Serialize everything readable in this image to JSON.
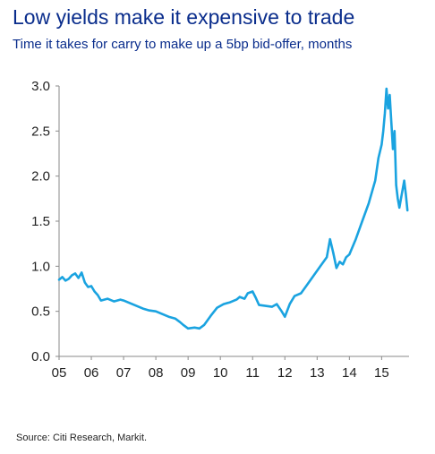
{
  "header": {
    "title": "Low yields make it expensive to trade",
    "subtitle": "Time it takes for carry to make up a 5bp bid-offer, months"
  },
  "footer": {
    "source": "Source: Citi Research, Markit."
  },
  "colors": {
    "line": "#1aa3e0",
    "title": "#0a2d8c",
    "axis": "#8a8a8a"
  },
  "chart_data": {
    "type": "line",
    "title": "Low yields make it expensive to trade",
    "subtitle": "Time it takes for carry to make up a 5bp bid-offer, months",
    "xlabel": "",
    "ylabel": "",
    "xlim": [
      2005.0,
      2015.85
    ],
    "ylim": [
      0,
      3.0
    ],
    "x_ticks": [
      2005,
      2006,
      2007,
      2008,
      2009,
      2010,
      2011,
      2012,
      2013,
      2014,
      2015
    ],
    "x_tick_labels": [
      "05",
      "06",
      "07",
      "08",
      "09",
      "10",
      "11",
      "12",
      "13",
      "14",
      "15"
    ],
    "y_ticks": [
      0,
      0.5,
      1.0,
      1.5,
      2.0,
      2.5,
      3.0
    ],
    "y_tick_labels": [
      "0.0",
      "0.5",
      "1.0",
      "1.5",
      "2.0",
      "2.5",
      "3.0"
    ],
    "grid": false,
    "legend": "none",
    "series": [
      {
        "x": [
          2005.0,
          2005.1,
          2005.2,
          2005.3,
          2005.4,
          2005.5,
          2005.6,
          2005.7,
          2005.8,
          2005.9,
          2006.0,
          2006.1,
          2006.2,
          2006.3,
          2006.5,
          2006.7,
          2006.9,
          2007.0,
          2007.2,
          2007.4,
          2007.6,
          2007.8,
          2008.0,
          2008.2,
          2008.4,
          2008.6,
          2008.75,
          2008.85,
          2009.0,
          2009.2,
          2009.35,
          2009.5,
          2009.7,
          2009.9,
          2010.1,
          2010.3,
          2010.5,
          2010.6,
          2010.75,
          2010.85,
          2011.0,
          2011.1,
          2011.2,
          2011.4,
          2011.6,
          2011.75,
          2011.9,
          2012.0,
          2012.15,
          2012.3,
          2012.5,
          2012.7,
          2012.9,
          2013.1,
          2013.3,
          2013.4,
          2013.5,
          2013.6,
          2013.7,
          2013.8,
          2013.9,
          2014.0,
          2014.2,
          2014.4,
          2014.6,
          2014.8,
          2014.9,
          2015.0,
          2015.05,
          2015.1,
          2015.15,
          2015.2,
          2015.25,
          2015.3,
          2015.35,
          2015.4,
          2015.45,
          2015.5,
          2015.55,
          2015.6,
          2015.7,
          2015.75,
          2015.8
        ],
        "y": [
          0.85,
          0.88,
          0.84,
          0.86,
          0.9,
          0.92,
          0.87,
          0.93,
          0.82,
          0.77,
          0.78,
          0.72,
          0.68,
          0.62,
          0.64,
          0.61,
          0.63,
          0.62,
          0.59,
          0.56,
          0.53,
          0.51,
          0.5,
          0.47,
          0.44,
          0.42,
          0.38,
          0.35,
          0.31,
          0.32,
          0.31,
          0.35,
          0.45,
          0.54,
          0.58,
          0.6,
          0.63,
          0.66,
          0.64,
          0.7,
          0.72,
          0.65,
          0.57,
          0.56,
          0.55,
          0.58,
          0.5,
          0.44,
          0.58,
          0.67,
          0.7,
          0.8,
          0.9,
          1.0,
          1.1,
          1.3,
          1.15,
          0.98,
          1.05,
          1.02,
          1.1,
          1.13,
          1.3,
          1.5,
          1.7,
          1.95,
          2.2,
          2.35,
          2.5,
          2.7,
          2.97,
          2.75,
          2.9,
          2.6,
          2.3,
          2.5,
          1.9,
          1.75,
          1.65,
          1.75,
          1.95,
          1.8,
          1.62
        ]
      }
    ]
  }
}
